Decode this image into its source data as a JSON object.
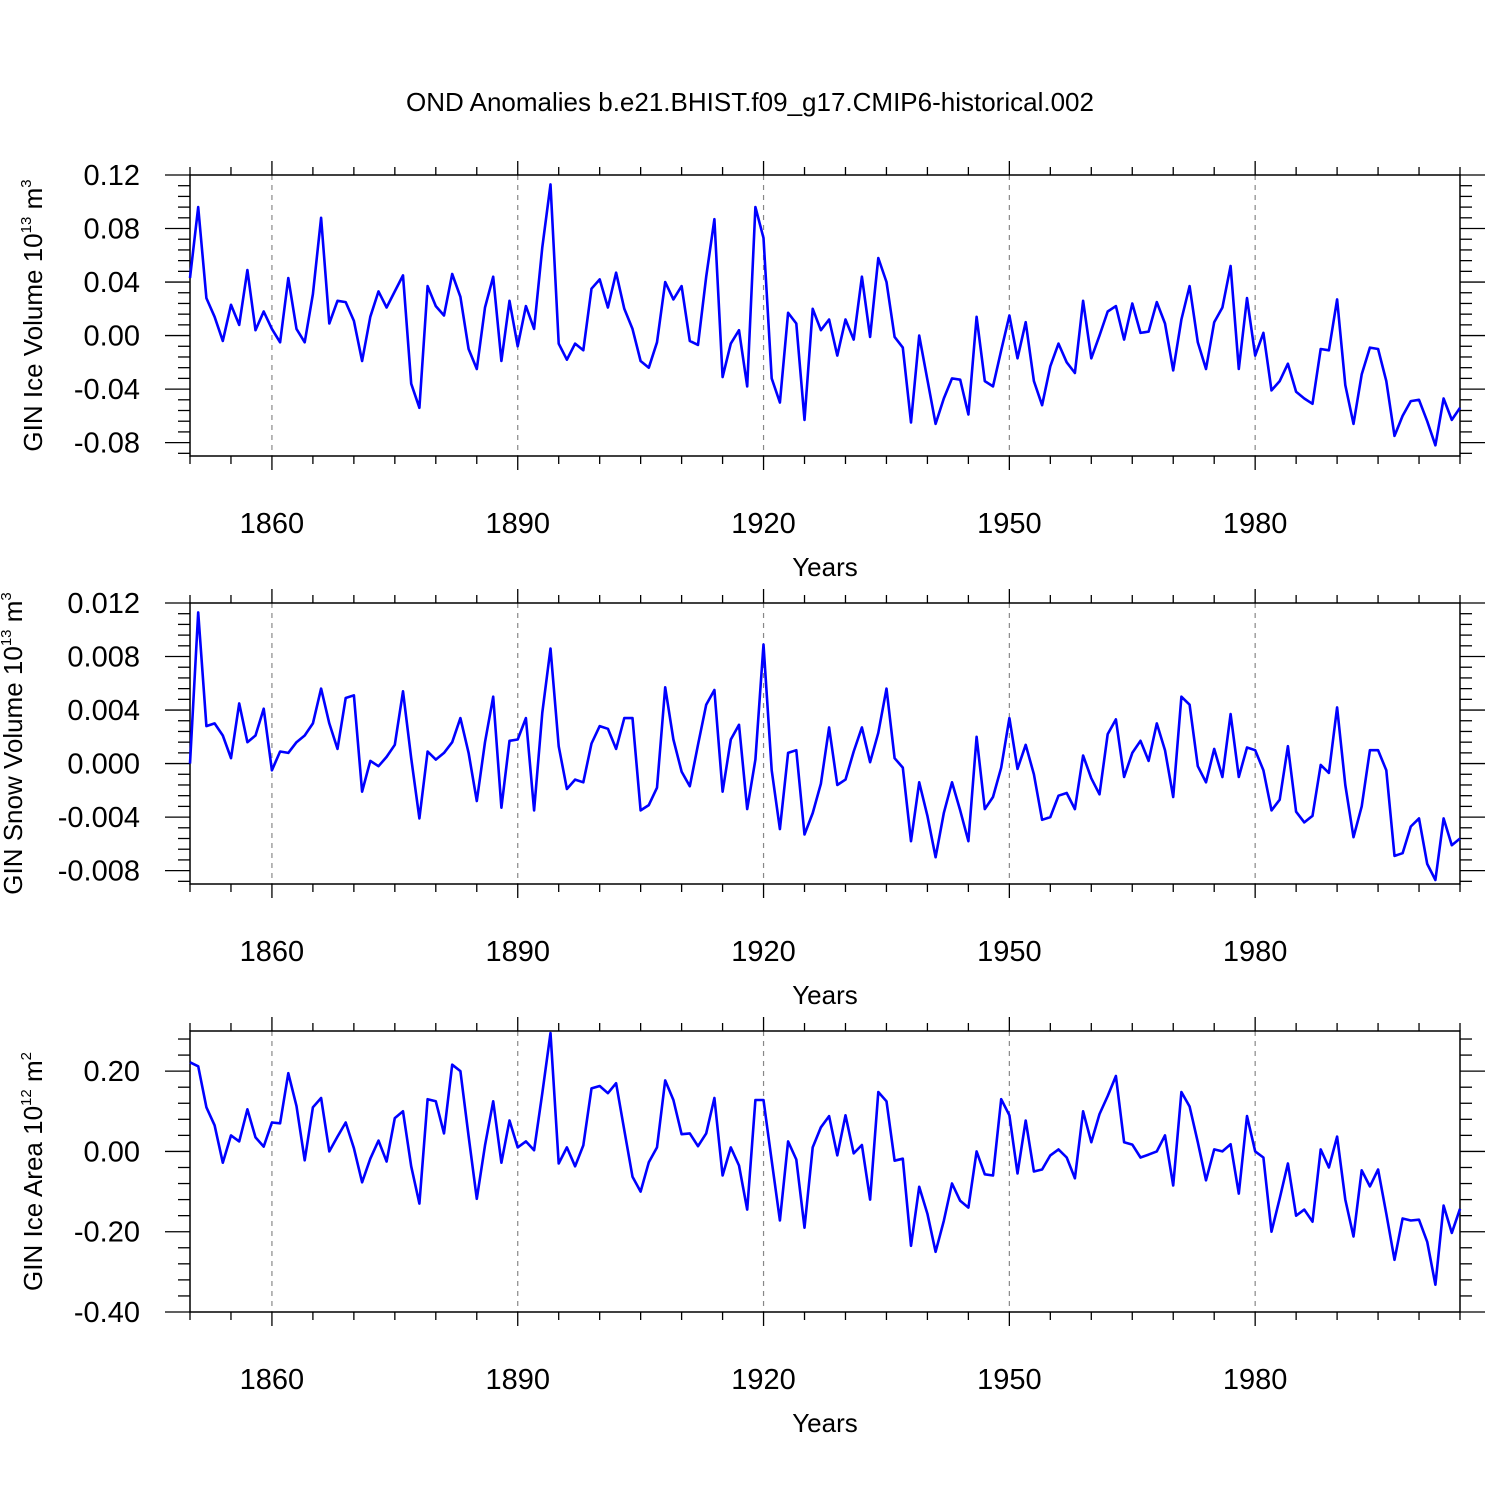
{
  "figure_title": "OND Anomalies b.e21.BHIST.f09_g17.CMIP6-historical.002",
  "colors": {
    "series": "#0000ff",
    "axes": "#000000",
    "gridline": "#888888"
  },
  "chart_data": [
    {
      "type": "line",
      "title": "OND Anomalies b.e21.BHIST.f09_g17.CMIP6-historical.002",
      "ylabel_main": "GIN Ice Volume 10",
      "ylabel_exp": "13",
      "ylabel_unit": " m",
      "ylabel_unit_exp": "3",
      "xlabel": "Years",
      "x_start": 1850,
      "x_step": 1,
      "xlim": [
        1850,
        2005
      ],
      "ylim": [
        -0.09,
        0.12
      ],
      "yticks": [
        -0.08,
        -0.04,
        0.0,
        0.04,
        0.08,
        0.12
      ],
      "ytick_labels": [
        "-0.08",
        "-0.04",
        "0.00",
        "0.04",
        "0.08",
        "0.12"
      ],
      "xticks": [
        1860,
        1890,
        1920,
        1950,
        1980
      ],
      "xtick_labels": [
        "1860",
        "1890",
        "1920",
        "1950",
        "1980"
      ],
      "values": [
        0.043,
        0.096,
        0.028,
        0.014,
        -0.004,
        0.023,
        0.008,
        0.049,
        0.004,
        0.018,
        0.005,
        -0.005,
        0.043,
        0.005,
        -0.005,
        0.031,
        0.088,
        0.009,
        0.026,
        0.025,
        0.011,
        -0.019,
        0.014,
        0.033,
        0.021,
        0.033,
        0.045,
        -0.036,
        -0.054,
        0.037,
        0.022,
        0.015,
        0.046,
        0.029,
        -0.01,
        -0.025,
        0.021,
        0.044,
        -0.019,
        0.026,
        -0.008,
        0.022,
        0.005,
        0.066,
        0.113,
        -0.006,
        -0.018,
        -0.006,
        -0.011,
        0.035,
        0.042,
        0.021,
        0.047,
        0.02,
        0.005,
        -0.019,
        -0.024,
        -0.005,
        0.04,
        0.027,
        0.037,
        -0.004,
        -0.007,
        0.044,
        0.087,
        -0.031,
        -0.006,
        0.004,
        -0.038,
        0.096,
        0.073,
        -0.032,
        -0.05,
        0.017,
        0.009,
        -0.063,
        0.02,
        0.004,
        0.012,
        -0.015,
        0.012,
        -0.003,
        0.044,
        -0.001,
        0.058,
        0.04,
        -0.001,
        -0.009,
        -0.065,
        0.0,
        -0.033,
        -0.066,
        -0.047,
        -0.032,
        -0.033,
        -0.059,
        0.014,
        -0.034,
        -0.038,
        -0.011,
        0.015,
        -0.017,
        0.01,
        -0.034,
        -0.052,
        -0.023,
        -0.006,
        -0.02,
        -0.028,
        0.026,
        -0.017,
        0.0,
        0.018,
        0.022,
        -0.003,
        0.024,
        0.002,
        0.003,
        0.025,
        0.009,
        -0.026,
        0.012,
        0.037,
        -0.005,
        -0.025,
        0.01,
        0.021,
        0.052,
        -0.025,
        0.028,
        -0.015,
        0.002,
        -0.041,
        -0.034,
        -0.021,
        -0.042,
        -0.047,
        -0.051,
        -0.01,
        -0.011,
        0.027,
        -0.037,
        -0.066,
        -0.029,
        -0.009,
        -0.01,
        -0.034,
        -0.075,
        -0.06,
        -0.049,
        -0.048,
        -0.064,
        -0.082,
        -0.047,
        -0.063,
        -0.054
      ]
    },
    {
      "type": "line",
      "ylabel_main": "GIN Snow Volume 10",
      "ylabel_exp": "13",
      "ylabel_unit": " m",
      "ylabel_unit_exp": "3",
      "xlabel": "Years",
      "x_start": 1850,
      "x_step": 1,
      "xlim": [
        1850,
        2005
      ],
      "ylim": [
        -0.009,
        0.012
      ],
      "yticks": [
        -0.008,
        -0.004,
        0.0,
        0.004,
        0.008,
        0.012
      ],
      "ytick_labels": [
        "-0.008",
        "-0.004",
        "0.000",
        "0.004",
        "0.008",
        "0.012"
      ],
      "xticks": [
        1860,
        1890,
        1920,
        1950,
        1980
      ],
      "xtick_labels": [
        "1860",
        "1890",
        "1920",
        "1950",
        "1980"
      ],
      "values": [
        0.0,
        0.0113,
        0.0028,
        0.003,
        0.0021,
        0.0004,
        0.0045,
        0.0016,
        0.0021,
        0.0041,
        -0.0005,
        0.0009,
        0.0008,
        0.0016,
        0.0021,
        0.003,
        0.0056,
        0.003,
        0.0011,
        0.0049,
        0.0051,
        -0.0021,
        0.0002,
        -0.0002,
        0.0005,
        0.0014,
        0.0054,
        0.0004,
        -0.0041,
        0.0009,
        0.0003,
        0.0008,
        0.0016,
        0.0034,
        0.0008,
        -0.0028,
        0.0016,
        0.005,
        -0.0033,
        0.0017,
        0.0018,
        0.0034,
        -0.0035,
        0.0038,
        0.0086,
        0.0013,
        -0.0019,
        -0.0012,
        -0.0014,
        0.0015,
        0.0028,
        0.0026,
        0.0011,
        0.0034,
        0.0034,
        -0.0035,
        -0.0031,
        -0.0018,
        0.0057,
        0.0018,
        -0.0006,
        -0.0017,
        0.0014,
        0.0044,
        0.0055,
        -0.0021,
        0.0018,
        0.0029,
        -0.0034,
        0.0003,
        0.0089,
        -0.0005,
        -0.0049,
        0.0008,
        0.001,
        -0.0053,
        -0.0037,
        -0.0015,
        0.0027,
        -0.0016,
        -0.0012,
        0.0009,
        0.0027,
        0.0001,
        0.0023,
        0.0056,
        0.0004,
        -0.0003,
        -0.0058,
        -0.0014,
        -0.0039,
        -0.007,
        -0.0037,
        -0.0014,
        -0.0035,
        -0.0058,
        0.002,
        -0.0034,
        -0.0025,
        -0.0003,
        0.0034,
        -0.0004,
        0.0014,
        -0.0008,
        -0.0042,
        -0.004,
        -0.0024,
        -0.0022,
        -0.0034,
        0.0006,
        -0.0011,
        -0.0023,
        0.0022,
        0.0033,
        -0.001,
        0.0008,
        0.0017,
        0.0002,
        0.003,
        0.001,
        -0.0025,
        0.005,
        0.0044,
        -0.0002,
        -0.0014,
        0.0011,
        -0.001,
        0.0037,
        -0.001,
        0.0012,
        0.001,
        -0.0005,
        -0.0035,
        -0.0027,
        0.0013,
        -0.0036,
        -0.0044,
        -0.0039,
        -0.0001,
        -0.0007,
        0.0042,
        -0.0016,
        -0.0055,
        -0.0032,
        0.001,
        0.001,
        -0.0005,
        -0.0069,
        -0.0067,
        -0.0047,
        -0.0041,
        -0.0075,
        -0.0087,
        -0.0041,
        -0.0061,
        -0.0056
      ]
    },
    {
      "type": "line",
      "ylabel_main": "GIN Ice Area 10",
      "ylabel_exp": "12",
      "ylabel_unit": " m",
      "ylabel_unit_exp": "2",
      "xlabel": "Years",
      "x_start": 1850,
      "x_step": 1,
      "xlim": [
        1850,
        2005
      ],
      "ylim": [
        -0.4,
        0.3
      ],
      "yticks": [
        -0.4,
        -0.2,
        0.0,
        0.2
      ],
      "ytick_labels": [
        "-0.40",
        "-0.20",
        "0.00",
        "0.20"
      ],
      "xticks": [
        1860,
        1890,
        1920,
        1950,
        1980
      ],
      "xtick_labels": [
        "1860",
        "1890",
        "1920",
        "1950",
        "1980"
      ],
      "values": [
        0.222,
        0.212,
        0.11,
        0.065,
        -0.028,
        0.04,
        0.025,
        0.105,
        0.035,
        0.012,
        0.072,
        0.07,
        0.195,
        0.113,
        -0.022,
        0.11,
        0.133,
        0.0,
        0.037,
        0.072,
        0.008,
        -0.077,
        -0.018,
        0.027,
        -0.025,
        0.083,
        0.1,
        -0.037,
        -0.13,
        0.13,
        0.125,
        0.045,
        0.216,
        0.2,
        0.038,
        -0.118,
        0.015,
        0.125,
        -0.028,
        0.077,
        0.01,
        0.025,
        0.003,
        0.145,
        0.295,
        -0.03,
        0.01,
        -0.037,
        0.015,
        0.157,
        0.163,
        0.145,
        0.17,
        0.053,
        -0.063,
        -0.1,
        -0.027,
        0.01,
        0.177,
        0.128,
        0.043,
        0.045,
        0.013,
        0.045,
        0.133,
        -0.06,
        0.01,
        -0.035,
        -0.145,
        0.128,
        0.128,
        -0.023,
        -0.172,
        0.025,
        -0.02,
        -0.19,
        0.01,
        0.06,
        0.088,
        -0.01,
        0.09,
        -0.005,
        0.016,
        -0.12,
        0.148,
        0.125,
        -0.023,
        -0.018,
        -0.235,
        -0.088,
        -0.155,
        -0.25,
        -0.173,
        -0.08,
        -0.123,
        -0.14,
        0.0,
        -0.057,
        -0.06,
        0.13,
        0.09,
        -0.055,
        0.077,
        -0.05,
        -0.045,
        -0.01,
        0.005,
        -0.015,
        -0.067,
        0.1,
        0.023,
        0.093,
        0.138,
        0.188,
        0.023,
        0.017,
        -0.015,
        -0.008,
        0.0,
        0.04,
        -0.085,
        0.148,
        0.112,
        0.023,
        -0.072,
        0.005,
        0.0,
        0.018,
        -0.105,
        0.088,
        0.0,
        -0.015,
        -0.2,
        -0.117,
        -0.03,
        -0.16,
        -0.145,
        -0.175,
        0.005,
        -0.04,
        0.037,
        -0.12,
        -0.212,
        -0.047,
        -0.087,
        -0.045,
        -0.155,
        -0.27,
        -0.167,
        -0.172,
        -0.17,
        -0.225,
        -0.332,
        -0.135,
        -0.203,
        -0.143
      ]
    }
  ]
}
